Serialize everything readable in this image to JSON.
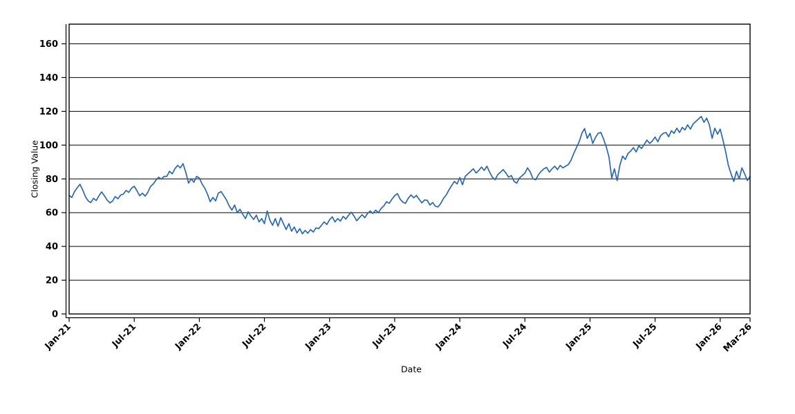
{
  "figure": {
    "background": "#ffffff",
    "plot_background": "#ffffff"
  },
  "chart_data": {
    "type": "line",
    "title": "",
    "xlabel": "Date",
    "ylabel": "Closing Value",
    "legend": "none",
    "grid": "horizontal-only",
    "grid_color": "#000000",
    "axis_color": "#000000",
    "tick_label_color": "#000000",
    "line_color": "#2766b2",
    "ylim": [
      0,
      171
    ],
    "yticks": [
      0,
      20,
      40,
      60,
      80,
      100,
      120,
      140,
      160
    ],
    "x_unit": "months-since-Jan-2021",
    "x_axis_span_months": 62.75,
    "x_ticks": [
      {
        "m": 0,
        "label": "Jan-21"
      },
      {
        "m": 6,
        "label": "Jul-21"
      },
      {
        "m": 12,
        "label": "Jan-22"
      },
      {
        "m": 18,
        "label": "Jul-22"
      },
      {
        "m": 24,
        "label": "Jan-23"
      },
      {
        "m": 30,
        "label": "Jul-23"
      },
      {
        "m": 36,
        "label": "Jan-24"
      },
      {
        "m": 42,
        "label": "Jul-24"
      },
      {
        "m": 48,
        "label": "Jan-25"
      },
      {
        "m": 54,
        "label": "Jul-25"
      },
      {
        "m": 60,
        "label": "Jan-26"
      },
      {
        "m": 62.75,
        "label": "Mar-26"
      }
    ],
    "x_start": 0,
    "x_step": 0.25,
    "values": [
      70.2,
      69,
      72.5,
      74.8,
      76.8,
      73.5,
      69.5,
      67,
      66,
      68.5,
      67.2,
      70,
      72.3,
      70,
      67.5,
      65.8,
      66.8,
      69.5,
      68.2,
      70.5,
      71,
      73.2,
      72,
      74.5,
      75.6,
      73,
      70,
      71.5,
      69.8,
      72,
      75.5,
      77,
      79.3,
      81,
      79.8,
      81.5,
      81.5,
      84.5,
      83,
      86,
      88,
      86.5,
      89,
      84,
      77.5,
      80,
      78,
      81.5,
      80.5,
      77,
      74.5,
      71,
      66.5,
      69,
      67,
      71.5,
      72.5,
      70,
      67.5,
      64,
      61.5,
      64.5,
      60,
      62,
      59,
      56.5,
      60.5,
      58,
      56,
      58.5,
      54.5,
      56.5,
      53.5,
      61,
      55.5,
      52.5,
      56.5,
      52,
      57,
      53.5,
      50,
      53.5,
      49,
      51.5,
      48,
      50.5,
      47.5,
      49.5,
      47.8,
      50,
      48.5,
      51,
      50.5,
      52.5,
      54.5,
      53,
      55.8,
      57.5,
      54.5,
      56.5,
      55,
      57.8,
      56.2,
      58.5,
      60.3,
      58,
      55.2,
      57,
      58.8,
      57,
      59.5,
      61,
      59.5,
      61.5,
      60,
      62.5,
      64,
      66.5,
      65.5,
      68,
      70,
      71.3,
      68,
      66.2,
      65.5,
      68.5,
      70.5,
      68.8,
      70.2,
      68,
      65.8,
      67.5,
      67.3,
      64.5,
      66,
      63.8,
      63.4,
      65.5,
      68.5,
      70.5,
      73.5,
      76,
      78.5,
      77,
      80.8,
      76.5,
      81.5,
      83,
      84.5,
      86,
      83.5,
      85,
      87,
      85,
      87.5,
      84,
      81,
      79.5,
      82.5,
      84,
      85.5,
      83.5,
      81,
      82,
      78.5,
      77.5,
      80.5,
      82,
      83.5,
      86.5,
      84,
      80,
      79.5,
      82.5,
      84.5,
      86,
      86.8,
      84,
      86,
      87.5,
      85.5,
      88,
      86.5,
      87.5,
      88.5,
      91,
      95,
      98.5,
      102,
      107,
      109.8,
      104,
      107,
      101,
      104.5,
      107,
      107.5,
      103.5,
      99,
      93,
      80.5,
      86,
      79,
      88,
      93.5,
      91.5,
      95,
      96.5,
      98.5,
      96,
      99.5,
      98,
      100.5,
      103,
      101,
      102.5,
      104.8,
      102,
      105.5,
      107,
      107.5,
      105,
      108.5,
      107,
      110,
      107.5,
      110.5,
      109,
      112,
      109.5,
      112.5,
      114,
      115.5,
      117,
      113.5,
      116,
      112,
      104,
      110,
      106.5,
      109.5,
      103,
      96,
      88,
      83,
      78.5,
      84.5,
      80,
      86.5,
      83,
      79,
      81.5
    ]
  }
}
